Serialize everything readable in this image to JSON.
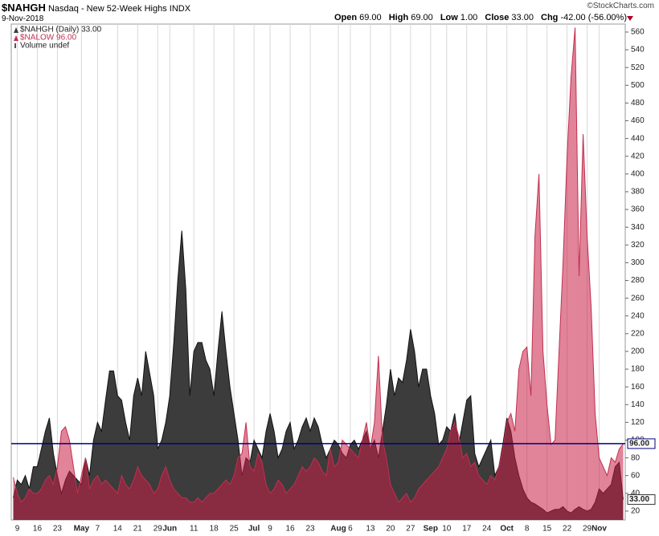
{
  "header": {
    "symbol": "$NAHGH",
    "name": "Nasdaq - New 52-Week Highs",
    "exchange": "INDX",
    "date": "9-Nov-2018",
    "copyright": "©StockCharts.com",
    "quote": [
      {
        "label": "Open",
        "value": "69.00"
      },
      {
        "label": "High",
        "value": "69.00"
      },
      {
        "label": "Low",
        "value": "1.00"
      },
      {
        "label": "Close",
        "value": "33.00"
      },
      {
        "label": "Chg",
        "value": "-42.00 (-56.00%)"
      }
    ],
    "volume_note": "Volume undef"
  },
  "chart_data": {
    "type": "area",
    "grid": "x",
    "ylim": [
      10,
      569
    ],
    "yticks": [
      20,
      40,
      60,
      80,
      100,
      120,
      140,
      160,
      180,
      200,
      220,
      240,
      260,
      280,
      300,
      320,
      340,
      360,
      380,
      400,
      420,
      440,
      460,
      480,
      500,
      520,
      540,
      560
    ],
    "reference_line": {
      "color": "#000080"
    },
    "categories": [
      null,
      "9",
      null,
      null,
      null,
      null,
      "16",
      null,
      null,
      null,
      null,
      "23",
      null,
      null,
      null,
      null,
      null,
      "May",
      null,
      null,
      null,
      "7",
      null,
      null,
      null,
      null,
      "14",
      null,
      null,
      null,
      null,
      "21",
      null,
      null,
      null,
      null,
      "29",
      null,
      null,
      "Jun",
      null,
      null,
      null,
      null,
      null,
      "11",
      null,
      null,
      null,
      null,
      "18",
      null,
      null,
      null,
      null,
      "25",
      null,
      null,
      null,
      null,
      "Jul",
      null,
      null,
      null,
      "9",
      null,
      null,
      null,
      null,
      "16",
      null,
      null,
      null,
      null,
      "23",
      null,
      null,
      null,
      null,
      null,
      null,
      "Aug",
      null,
      null,
      "6",
      null,
      null,
      null,
      null,
      "13",
      null,
      null,
      null,
      null,
      "20",
      null,
      null,
      null,
      null,
      "27",
      null,
      null,
      null,
      null,
      "Sep",
      null,
      null,
      null,
      "10",
      null,
      null,
      null,
      null,
      "17",
      null,
      null,
      null,
      null,
      "24",
      null,
      null,
      null,
      null,
      "Oct",
      null,
      null,
      null,
      null,
      "8",
      null,
      null,
      null,
      null,
      "15",
      null,
      null,
      null,
      null,
      "22",
      null,
      null,
      null,
      null,
      "29",
      null,
      null,
      "Nov",
      null,
      null,
      null,
      null,
      null,
      null
    ],
    "series": [
      {
        "name": "$NAHGH (Daily) 33.00",
        "last_label": "33.00",
        "color": "#3c3c3c",
        "line_color": "#111111",
        "values": [
          35,
          55,
          50,
          60,
          45,
          70,
          70,
          90,
          110,
          125,
          85,
          60,
          40,
          55,
          65,
          60,
          55,
          50,
          80,
          60,
          100,
          120,
          110,
          145,
          178,
          178,
          150,
          145,
          120,
          100,
          150,
          170,
          150,
          200,
          175,
          150,
          90,
          100,
          120,
          150,
          210,
          280,
          336,
          270,
          150,
          200,
          210,
          210,
          190,
          180,
          150,
          200,
          245,
          200,
          160,
          130,
          100,
          60,
          80,
          75,
          100,
          90,
          80,
          110,
          130,
          110,
          80,
          90,
          110,
          120,
          90,
          100,
          115,
          125,
          110,
          125,
          115,
          95,
          80,
          90,
          100,
          95,
          85,
          80,
          95,
          100,
          90,
          100,
          110,
          90,
          100,
          80,
          110,
          140,
          180,
          150,
          170,
          165,
          190,
          225,
          200,
          160,
          180,
          180,
          150,
          130,
          95,
          100,
          115,
          110,
          130,
          95,
          120,
          145,
          150,
          85,
          70,
          80,
          90,
          100,
          60,
          70,
          95,
          125,
          110,
          80,
          60,
          45,
          35,
          30,
          28,
          25,
          22,
          18,
          20,
          22,
          22,
          25,
          20,
          18,
          22,
          25,
          22,
          20,
          22,
          30,
          45,
          40,
          45,
          50,
          70,
          75,
          33
        ]
      },
      {
        "name": "$NALOW 96.00",
        "last_label": "96.00",
        "color": "rgba(200,30,70,0.55)",
        "line_color": "#c0304f",
        "values": [
          58,
          40,
          30,
          35,
          45,
          40,
          40,
          45,
          55,
          60,
          50,
          70,
          110,
          115,
          100,
          70,
          40,
          60,
          80,
          45,
          55,
          60,
          50,
          55,
          50,
          45,
          40,
          60,
          50,
          45,
          55,
          70,
          60,
          55,
          50,
          40,
          45,
          60,
          70,
          55,
          45,
          40,
          35,
          35,
          30,
          30,
          35,
          30,
          35,
          40,
          40,
          45,
          50,
          55,
          50,
          60,
          80,
          85,
          120,
          70,
          65,
          85,
          75,
          50,
          40,
          45,
          55,
          50,
          40,
          45,
          50,
          60,
          70,
          65,
          70,
          80,
          75,
          65,
          60,
          90,
          70,
          75,
          100,
          95,
          90,
          85,
          80,
          100,
          120,
          90,
          120,
          195,
          100,
          80,
          50,
          40,
          30,
          35,
          40,
          30,
          35,
          45,
          50,
          55,
          60,
          65,
          70,
          80,
          90,
          110,
          120,
          105,
          80,
          85,
          70,
          75,
          60,
          55,
          50,
          60,
          55,
          70,
          90,
          120,
          130,
          110,
          180,
          200,
          205,
          150,
          330,
          400,
          200,
          140,
          95,
          100,
          200,
          300,
          420,
          510,
          565,
          285,
          445,
          330,
          250,
          130,
          80,
          70,
          60,
          80,
          75,
          90,
          96
        ]
      }
    ]
  }
}
